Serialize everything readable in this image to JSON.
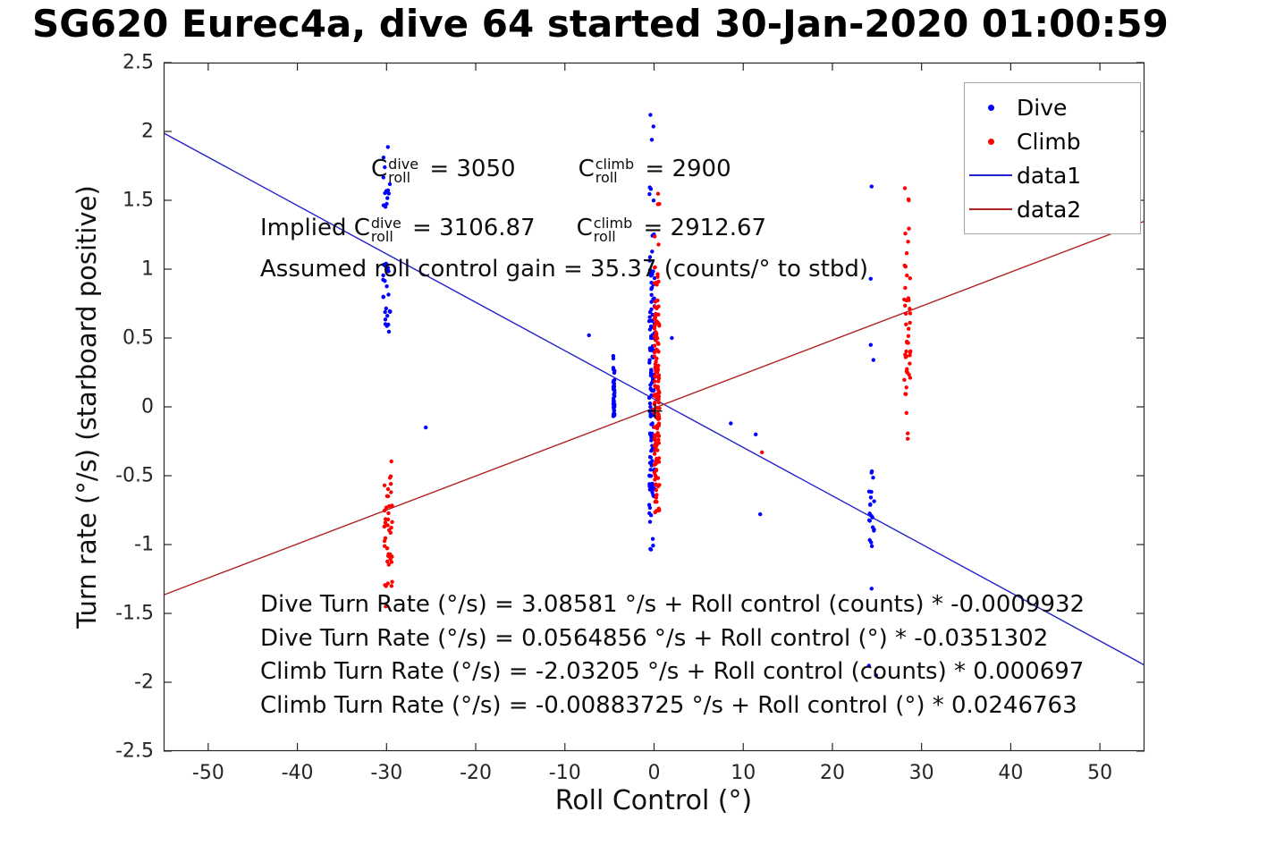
{
  "title": "SG620 Eurec4a, dive 64 started 30-Jan-2020 01:00:59",
  "chart_data": {
    "type": "scatter",
    "title": "SG620 Eurec4a, dive 64 started 30-Jan-2020 01:00:59",
    "xlabel": "Roll Control (°)",
    "ylabel": "Turn rate (°/s) (starboard positive)",
    "xlim": [
      -55,
      55
    ],
    "ylim": [
      -2.5,
      2.5
    ],
    "grid": false,
    "xticks": {
      "values": [
        -50,
        -40,
        -30,
        -20,
        -10,
        0,
        10,
        20,
        30,
        40,
        50
      ],
      "labels": [
        "-50",
        "-40",
        "-30",
        "-20",
        "-10",
        "0",
        "10",
        "20",
        "30",
        "40",
        "50"
      ]
    },
    "yticks": {
      "values": [
        -2.5,
        -2,
        -1.5,
        -1,
        -0.5,
        0,
        0.5,
        1,
        1.5,
        2,
        2.5
      ],
      "labels": [
        "-2.5",
        "-2",
        "-1.5",
        "-1",
        "-0.5",
        "0",
        "0.5",
        "1",
        "1.5",
        "2",
        "2.5"
      ]
    },
    "legend": {
      "position": "northeast",
      "entries": [
        {
          "label": "Dive",
          "type": "dot",
          "color": "#0000ff"
        },
        {
          "label": "Climb",
          "type": "dot",
          "color": "#ff0000"
        },
        {
          "label": "data1",
          "type": "line",
          "color": "#2222cc"
        },
        {
          "label": "data2",
          "type": "line",
          "color": "#b22222"
        }
      ]
    },
    "lines": [
      {
        "name": "data1",
        "color": "#2222cc",
        "intercept": 0.0564856,
        "slope": -0.0351302
      },
      {
        "name": "data2",
        "color": "#b22222",
        "intercept": -0.00883725,
        "slope": 0.0246763
      }
    ],
    "marker_plus": {
      "x": 0.1,
      "y": -0.03,
      "color": "#000000"
    },
    "scatter_series": [
      {
        "name": "Dive",
        "color": "#0000ff",
        "clusters": [
          {
            "x": -30.0,
            "jx": 0.4,
            "seed": 11,
            "segments": [
              {
                "y0": 1.45,
                "y1": 1.92,
                "n": 13
              },
              {
                "y0": 0.55,
                "y1": 1.08,
                "n": 24
              },
              {
                "y0": 0.5,
                "y1": 0.55,
                "n": 1
              }
            ]
          },
          {
            "x": -0.25,
            "jx": 0.3,
            "seed": 12,
            "segments": [
              {
                "y0": 1.88,
                "y1": 2.26,
                "n": 3
              },
              {
                "y0": 1.05,
                "y1": 1.65,
                "n": 9
              },
              {
                "y0": 0.3,
                "y1": 1.0,
                "n": 42
              },
              {
                "y0": -0.62,
                "y1": 0.3,
                "n": 70
              },
              {
                "y0": -1.05,
                "y1": -0.62,
                "n": 12
              }
            ]
          },
          {
            "x": -4.5,
            "jx": 0.08,
            "seed": 13,
            "segments": [
              {
                "y0": -0.07,
                "y1": 0.3,
                "n": 36
              },
              {
                "y0": 0.3,
                "y1": 0.38,
                "n": 2
              }
            ]
          },
          {
            "x": 24.4,
            "jx": 0.3,
            "seed": 14,
            "segments": [
              {
                "y0": -1.05,
                "y1": -0.45,
                "n": 20
              }
            ]
          }
        ],
        "points": [
          [
            -7.3,
            0.52
          ],
          [
            -25.6,
            -0.15
          ],
          [
            2.0,
            0.5
          ],
          [
            8.6,
            -0.12
          ],
          [
            11.4,
            -0.2
          ],
          [
            11.9,
            -0.78
          ],
          [
            24.3,
            0.45
          ],
          [
            24.6,
            0.34
          ],
          [
            24.3,
            0.93
          ],
          [
            24.4,
            1.6
          ],
          [
            24.4,
            -1.32
          ],
          [
            24.1,
            -1.88
          ],
          [
            24.9,
            -1.95
          ]
        ]
      },
      {
        "name": "Climb",
        "color": "#ff0000",
        "clusters": [
          {
            "x": -29.8,
            "jx": 0.45,
            "seed": 21,
            "segments": [
              {
                "y0": -0.6,
                "y1": -0.33,
                "n": 6
              },
              {
                "y0": -1.15,
                "y1": -0.6,
                "n": 30
              },
              {
                "y0": -1.47,
                "y1": -1.15,
                "n": 6
              }
            ]
          },
          {
            "x": 0.3,
            "jx": 0.3,
            "seed": 22,
            "segments": [
              {
                "y0": 1.44,
                "y1": 1.58,
                "n": 3
              },
              {
                "y0": 1.12,
                "y1": 1.26,
                "n": 2
              },
              {
                "y0": 0.72,
                "y1": 1.02,
                "n": 12
              },
              {
                "y0": -0.1,
                "y1": 0.72,
                "n": 80
              },
              {
                "y0": -0.78,
                "y1": -0.1,
                "n": 52
              }
            ]
          },
          {
            "x": 28.4,
            "jx": 0.35,
            "seed": 23,
            "segments": [
              {
                "y0": 1.48,
                "y1": 1.63,
                "n": 3
              },
              {
                "y0": 0.88,
                "y1": 1.32,
                "n": 8
              },
              {
                "y0": 0.22,
                "y1": 0.88,
                "n": 28
              },
              {
                "y0": -0.08,
                "y1": 0.22,
                "n": 6
              },
              {
                "y0": -0.27,
                "y1": -0.1,
                "n": 2
              }
            ]
          }
        ],
        "points": [
          [
            12.1,
            -0.33
          ]
        ]
      }
    ],
    "annotations": {
      "row1": {
        "item1": {
          "base": "C",
          "sub": "roll",
          "sup": "dive",
          "rest": " = 3050"
        },
        "item2": {
          "base": "C",
          "sub": "roll",
          "sup": "climb",
          "rest": " = 2900"
        }
      },
      "row2": {
        "prefix": "Implied ",
        "item1": {
          "base": "C",
          "sub": "roll",
          "sup": "dive",
          "rest": " = 3106.87"
        },
        "item2": {
          "base": "C",
          "sub": "roll",
          "sup": "climb",
          "rest": " = 2912.67"
        }
      },
      "row3": "Assumed roll control gain = 35.37 (counts/° to stbd)",
      "equations": [
        "Dive Turn Rate (°/s) = 3.08581 °/s + Roll control (counts) * -0.0009932",
        "Dive Turn Rate (°/s) = 0.0564856 °/s + Roll control (°) * -0.0351302",
        "Climb Turn Rate (°/s) = -2.03205 °/s + Roll control (counts) * 0.000697",
        "Climb Turn Rate (°/s) = -0.00883725 °/s + Roll control (°) * 0.0246763"
      ]
    },
    "axis_color": "#262626"
  }
}
